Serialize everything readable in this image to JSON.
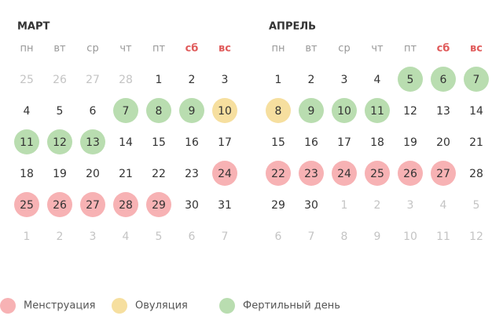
{
  "months": [
    {
      "title": "МАРТ",
      "weekdays": [
        {
          "text": "пн"
        },
        {
          "text": "вт"
        },
        {
          "text": "ср"
        },
        {
          "text": "чт"
        },
        {
          "text": "пт"
        },
        {
          "text": "сб",
          "color": "#e05a5a"
        },
        {
          "text": "вс",
          "color": "#e05a5a"
        }
      ],
      "weeks": [
        [
          {
            "text": "25",
            "muted": true
          },
          {
            "text": "26",
            "muted": true
          },
          {
            "text": "27",
            "muted": true
          },
          {
            "text": "28",
            "muted": true
          },
          {
            "text": "1"
          },
          {
            "text": "2"
          },
          {
            "text": "3"
          }
        ],
        [
          {
            "text": "4"
          },
          {
            "text": "5"
          },
          {
            "text": "6"
          },
          {
            "text": "7",
            "color": "#b9ddb0"
          },
          {
            "text": "8",
            "color": "#b9ddb0"
          },
          {
            "text": "9",
            "color": "#b9ddb0"
          },
          {
            "text": "10",
            "color": "#f6df9f"
          }
        ],
        [
          {
            "text": "11",
            "color": "#b9ddb0"
          },
          {
            "text": "12",
            "color": "#b9ddb0"
          },
          {
            "text": "13",
            "color": "#b9ddb0"
          },
          {
            "text": "14"
          },
          {
            "text": "15"
          },
          {
            "text": "16"
          },
          {
            "text": "17"
          }
        ],
        [
          {
            "text": "18"
          },
          {
            "text": "19"
          },
          {
            "text": "20"
          },
          {
            "text": "21"
          },
          {
            "text": "22"
          },
          {
            "text": "23"
          },
          {
            "text": "24",
            "color": "#f7b2b4"
          }
        ],
        [
          {
            "text": "25",
            "color": "#f7b2b4"
          },
          {
            "text": "26",
            "color": "#f7b2b4"
          },
          {
            "text": "27",
            "color": "#f7b2b4"
          },
          {
            "text": "28",
            "color": "#f7b2b4"
          },
          {
            "text": "29",
            "color": "#f7b2b4"
          },
          {
            "text": "30"
          },
          {
            "text": "31"
          }
        ],
        [
          {
            "text": "1",
            "muted": true
          },
          {
            "text": "2",
            "muted": true
          },
          {
            "text": "3",
            "muted": true
          },
          {
            "text": "4",
            "muted": true
          },
          {
            "text": "5",
            "muted": true
          },
          {
            "text": "6",
            "muted": true
          },
          {
            "text": "7",
            "muted": true
          }
        ]
      ]
    },
    {
      "title": "АПРЕЛЬ",
      "weekdays": [
        {
          "text": "пн"
        },
        {
          "text": "вт"
        },
        {
          "text": "ср"
        },
        {
          "text": "чт"
        },
        {
          "text": "пт"
        },
        {
          "text": "сб",
          "color": "#e05a5a"
        },
        {
          "text": "вс",
          "color": "#e05a5a"
        }
      ],
      "weeks": [
        [
          {
            "text": "1"
          },
          {
            "text": "2"
          },
          {
            "text": "3"
          },
          {
            "text": "4"
          },
          {
            "text": "5",
            "color": "#b9ddb0"
          },
          {
            "text": "6",
            "color": "#b9ddb0"
          },
          {
            "text": "7",
            "color": "#b9ddb0"
          }
        ],
        [
          {
            "text": "8",
            "color": "#f6df9f"
          },
          {
            "text": "9",
            "color": "#b9ddb0"
          },
          {
            "text": "10",
            "color": "#b9ddb0"
          },
          {
            "text": "11",
            "color": "#b9ddb0"
          },
          {
            "text": "12"
          },
          {
            "text": "13"
          },
          {
            "text": "14"
          }
        ],
        [
          {
            "text": "15"
          },
          {
            "text": "16"
          },
          {
            "text": "17"
          },
          {
            "text": "18"
          },
          {
            "text": "19"
          },
          {
            "text": "20"
          },
          {
            "text": "21"
          }
        ],
        [
          {
            "text": "22",
            "color": "#f7b2b4"
          },
          {
            "text": "23",
            "color": "#f7b2b4"
          },
          {
            "text": "24",
            "color": "#f7b2b4"
          },
          {
            "text": "25",
            "color": "#f7b2b4"
          },
          {
            "text": "26",
            "color": "#f7b2b4"
          },
          {
            "text": "27",
            "color": "#f7b2b4"
          },
          {
            "text": "28"
          }
        ],
        [
          {
            "text": "29"
          },
          {
            "text": "30"
          },
          {
            "text": "1",
            "muted": true
          },
          {
            "text": "2",
            "muted": true
          },
          {
            "text": "3",
            "muted": true
          },
          {
            "text": "4",
            "muted": true
          },
          {
            "text": "5",
            "muted": true
          }
        ],
        [
          {
            "text": "6",
            "muted": true
          },
          {
            "text": "7",
            "muted": true
          },
          {
            "text": "8",
            "muted": true
          },
          {
            "text": "9",
            "muted": true
          },
          {
            "text": "10",
            "muted": true
          },
          {
            "text": "11",
            "muted": true
          },
          {
            "text": "12",
            "muted": true
          }
        ]
      ]
    }
  ],
  "legend": [
    {
      "text": "Менструация",
      "color": "#f7b2b4"
    },
    {
      "text": "Овуляция",
      "color": "#f6df9f"
    },
    {
      "text": "Фертильный день",
      "color": "#b9ddb0"
    }
  ]
}
